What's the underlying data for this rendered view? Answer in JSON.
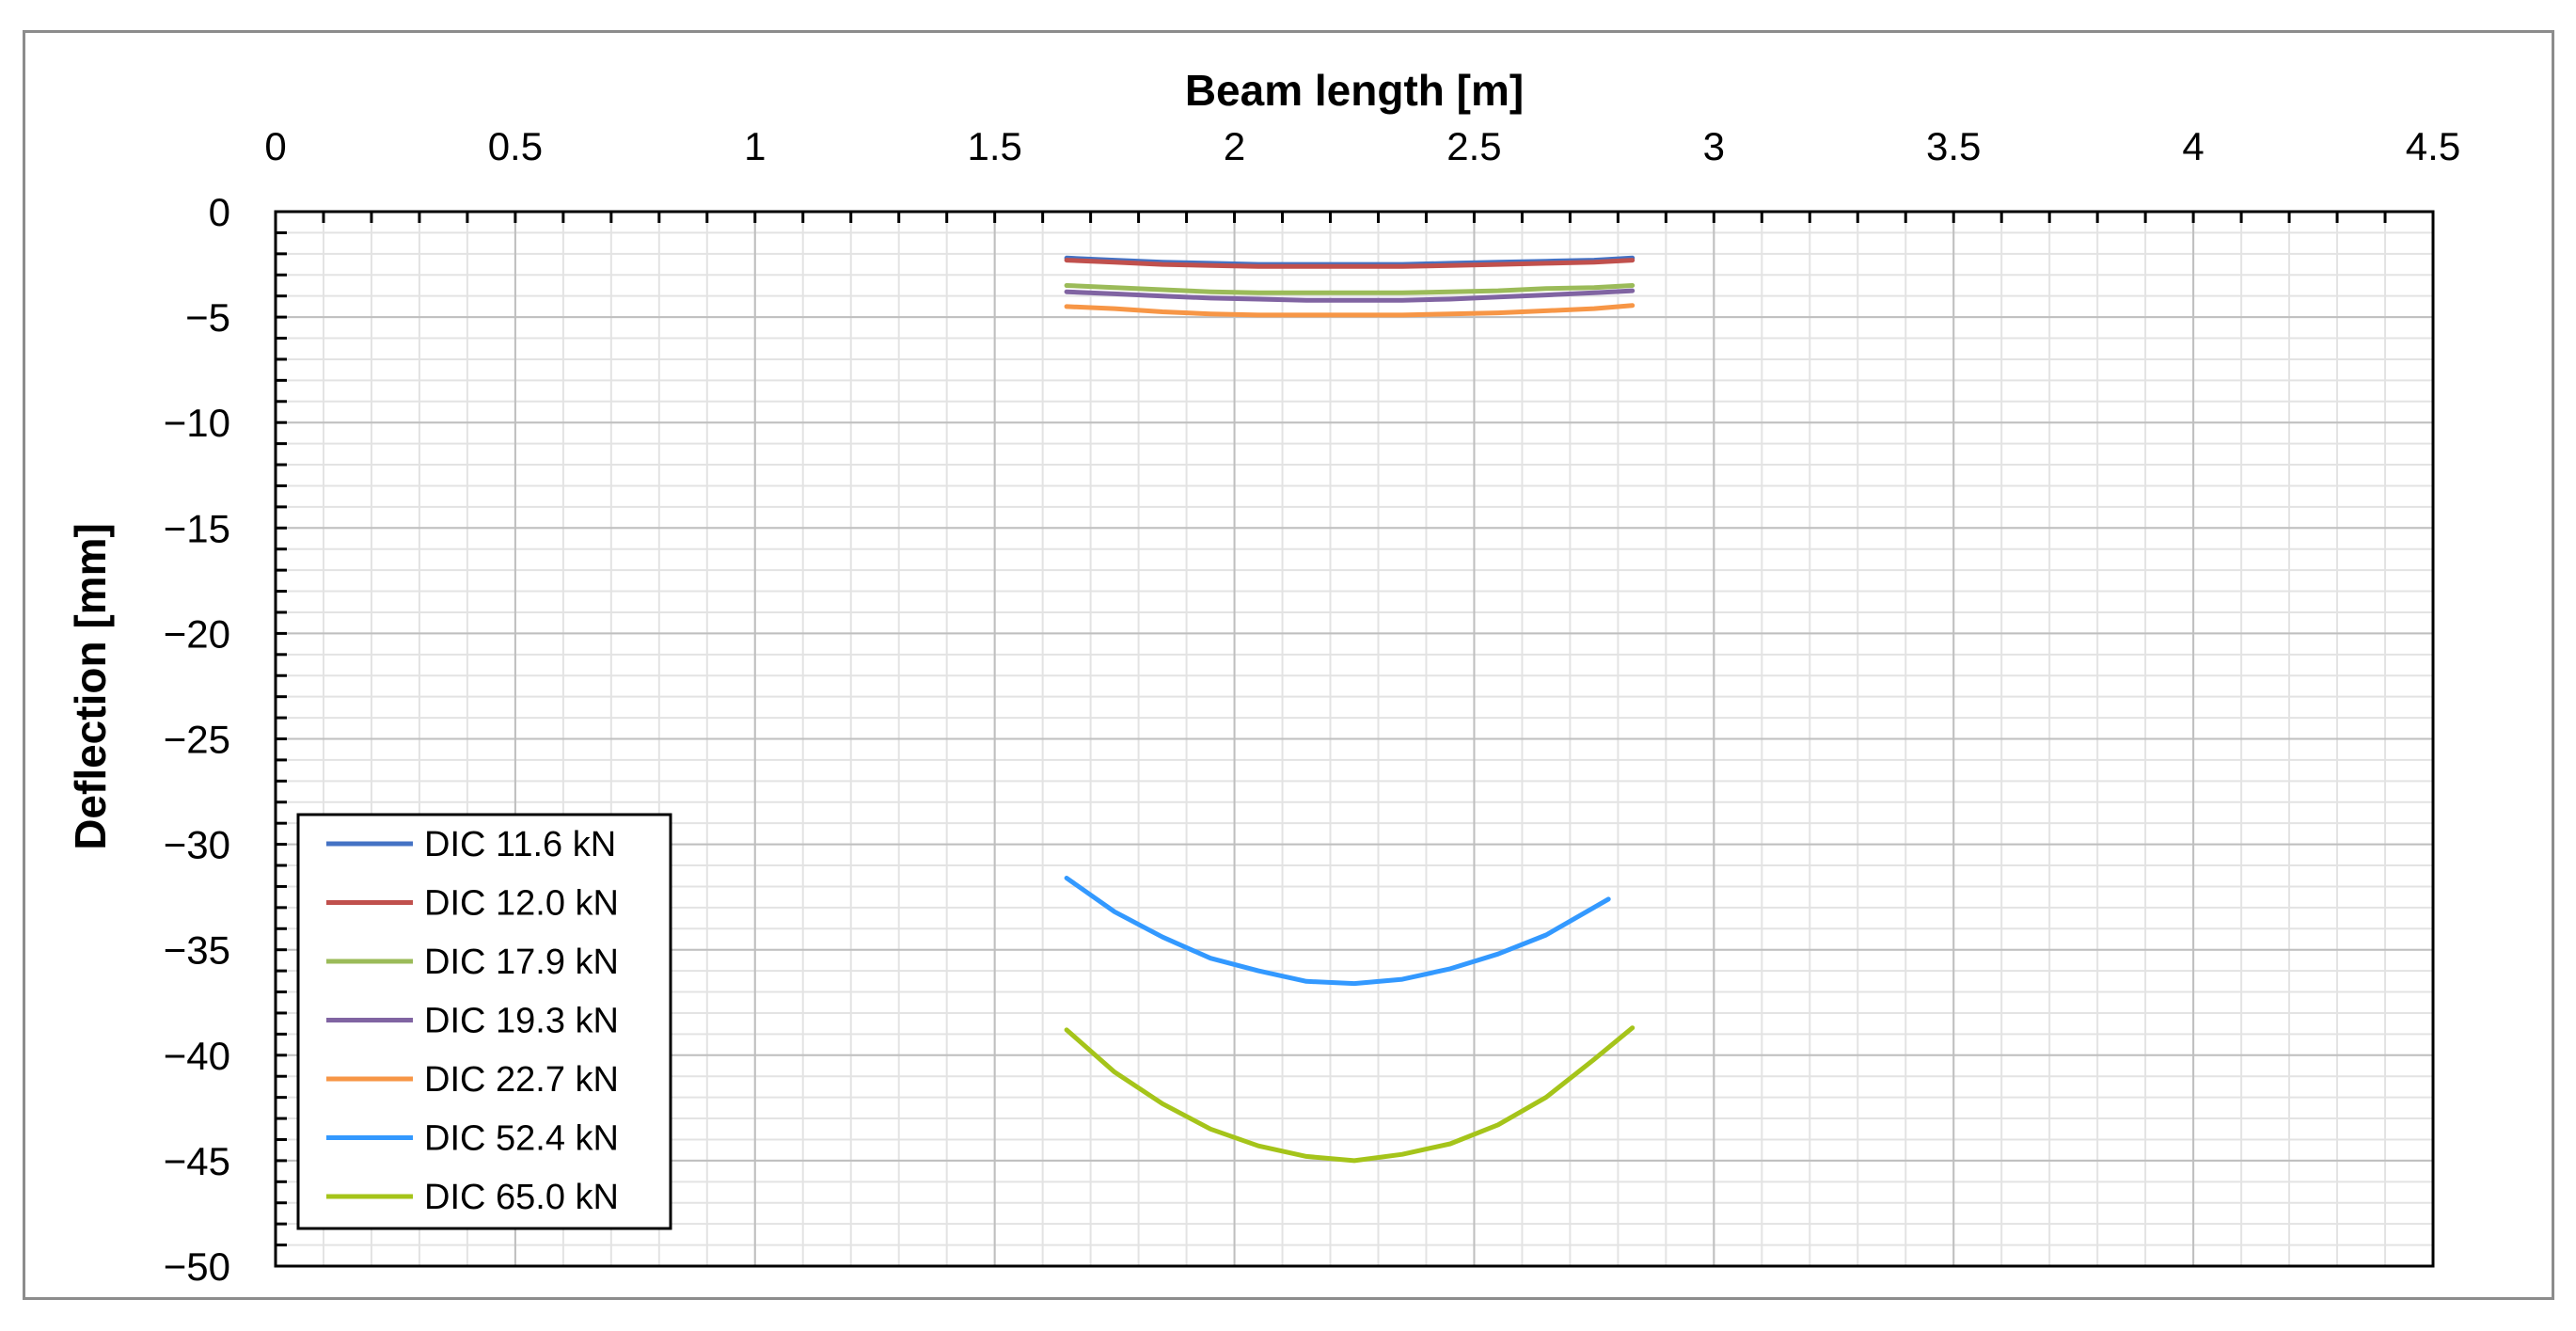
{
  "chart_data": {
    "type": "line",
    "title": "",
    "xlabel": "Beam length [m]",
    "ylabel": "Deflection [mm]",
    "xlim": [
      0,
      4.5
    ],
    "ylim": [
      -50,
      0
    ],
    "x_ticks": [
      "0",
      "0.5",
      "1",
      "1.5",
      "2",
      "2.5",
      "3",
      "3.5",
      "4",
      "4.5"
    ],
    "y_ticks": [
      "0",
      "−5",
      "−10",
      "−15",
      "−20",
      "−25",
      "−30",
      "−35",
      "−40",
      "−45",
      "−50"
    ],
    "x_axis_position": "top",
    "grid": true,
    "legend_position": "bottom-left",
    "series": [
      {
        "name": "DIC 11.6 kN",
        "color": "#4472c4",
        "x": [
          1.65,
          1.75,
          1.85,
          1.95,
          2.05,
          2.15,
          2.25,
          2.35,
          2.45,
          2.55,
          2.65,
          2.75,
          2.83
        ],
        "y": [
          -2.2,
          -2.3,
          -2.4,
          -2.45,
          -2.5,
          -2.5,
          -2.5,
          -2.5,
          -2.45,
          -2.4,
          -2.35,
          -2.3,
          -2.2
        ]
      },
      {
        "name": "DIC 12.0 kN",
        "color": "#c0504d",
        "x": [
          1.65,
          1.75,
          1.85,
          1.95,
          2.05,
          2.15,
          2.25,
          2.35,
          2.45,
          2.55,
          2.65,
          2.75,
          2.83
        ],
        "y": [
          -2.3,
          -2.4,
          -2.5,
          -2.55,
          -2.6,
          -2.6,
          -2.6,
          -2.6,
          -2.55,
          -2.5,
          -2.45,
          -2.4,
          -2.3
        ]
      },
      {
        "name": "DIC 17.9 kN",
        "color": "#9bbb59",
        "x": [
          1.65,
          1.75,
          1.85,
          1.95,
          2.05,
          2.15,
          2.25,
          2.35,
          2.45,
          2.55,
          2.65,
          2.75,
          2.83
        ],
        "y": [
          -3.5,
          -3.6,
          -3.7,
          -3.8,
          -3.85,
          -3.85,
          -3.85,
          -3.85,
          -3.8,
          -3.75,
          -3.65,
          -3.6,
          -3.5
        ]
      },
      {
        "name": "DIC 19.3 kN",
        "color": "#8064a2",
        "x": [
          1.65,
          1.75,
          1.85,
          1.95,
          2.05,
          2.15,
          2.25,
          2.35,
          2.45,
          2.55,
          2.65,
          2.75,
          2.83
        ],
        "y": [
          -3.8,
          -3.9,
          -4.0,
          -4.1,
          -4.15,
          -4.2,
          -4.2,
          -4.2,
          -4.15,
          -4.05,
          -3.95,
          -3.85,
          -3.75
        ]
      },
      {
        "name": "DIC 22.7 kN",
        "color": "#f79646",
        "x": [
          1.65,
          1.75,
          1.85,
          1.95,
          2.05,
          2.15,
          2.25,
          2.35,
          2.45,
          2.55,
          2.65,
          2.75,
          2.83
        ],
        "y": [
          -4.5,
          -4.6,
          -4.75,
          -4.85,
          -4.9,
          -4.9,
          -4.9,
          -4.9,
          -4.85,
          -4.8,
          -4.7,
          -4.6,
          -4.45
        ]
      },
      {
        "name": "DIC 52.4 kN",
        "color": "#3399ff",
        "x": [
          1.65,
          1.75,
          1.85,
          1.95,
          2.05,
          2.15,
          2.25,
          2.35,
          2.45,
          2.55,
          2.65,
          2.78
        ],
        "y": [
          -31.6,
          -33.2,
          -34.4,
          -35.4,
          -36.0,
          -36.5,
          -36.6,
          -36.4,
          -35.9,
          -35.2,
          -34.3,
          -32.6
        ]
      },
      {
        "name": "DIC 65.0 kN",
        "color": "#a5c41a",
        "x": [
          1.65,
          1.75,
          1.85,
          1.95,
          2.05,
          2.15,
          2.25,
          2.35,
          2.45,
          2.55,
          2.65,
          2.75,
          2.83
        ],
        "y": [
          -38.8,
          -40.8,
          -42.3,
          -43.5,
          -44.3,
          -44.8,
          -45.0,
          -44.7,
          -44.2,
          -43.3,
          -42.0,
          -40.2,
          -38.7
        ]
      }
    ]
  }
}
